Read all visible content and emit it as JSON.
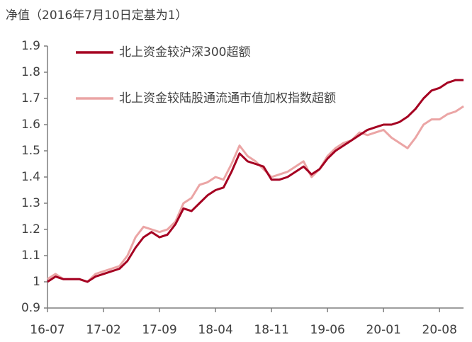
{
  "chart_data": {
    "type": "line",
    "title": "净值（2016年7月10日定基为1）",
    "categories": [
      "16-07",
      null,
      null,
      null,
      null,
      null,
      null,
      "17-02",
      null,
      null,
      null,
      null,
      null,
      null,
      "17-09",
      null,
      null,
      null,
      null,
      null,
      null,
      "18-04",
      null,
      null,
      null,
      null,
      null,
      null,
      "18-11",
      null,
      null,
      null,
      null,
      null,
      null,
      "19-06",
      null,
      null,
      null,
      null,
      null,
      null,
      "20-01",
      null,
      null,
      null,
      null,
      null,
      null,
      "20-08",
      null,
      null,
      null
    ],
    "series": [
      {
        "name": "北上资金较沪深300超额",
        "color": "#a50021",
        "values": [
          1.0,
          1.02,
          1.01,
          1.01,
          1.01,
          1.0,
          1.02,
          1.03,
          1.04,
          1.05,
          1.08,
          1.13,
          1.17,
          1.19,
          1.17,
          1.18,
          1.22,
          1.28,
          1.27,
          1.3,
          1.33,
          1.35,
          1.36,
          1.42,
          1.49,
          1.46,
          1.45,
          1.44,
          1.39,
          1.39,
          1.4,
          1.42,
          1.44,
          1.41,
          1.43,
          1.47,
          1.5,
          1.52,
          1.54,
          1.56,
          1.58,
          1.59,
          1.6,
          1.6,
          1.61,
          1.63,
          1.66,
          1.7,
          1.73,
          1.74,
          1.76,
          1.77,
          1.77
        ]
      },
      {
        "name": "北上资金较陆股通流通市值加权指数超额",
        "color": "#eba5a5",
        "values": [
          1.01,
          1.03,
          1.01,
          1.01,
          1.01,
          1.0,
          1.03,
          1.04,
          1.05,
          1.06,
          1.1,
          1.17,
          1.21,
          1.2,
          1.19,
          1.2,
          1.23,
          1.3,
          1.32,
          1.37,
          1.38,
          1.4,
          1.39,
          1.45,
          1.52,
          1.48,
          1.46,
          1.43,
          1.4,
          1.41,
          1.42,
          1.44,
          1.46,
          1.4,
          1.43,
          1.48,
          1.51,
          1.53,
          1.54,
          1.57,
          1.56,
          1.57,
          1.58,
          1.55,
          1.53,
          1.51,
          1.55,
          1.6,
          1.62,
          1.62,
          1.64,
          1.65,
          1.67
        ]
      }
    ],
    "ylim": [
      0.9,
      1.9
    ],
    "yticks": [
      0.9,
      1,
      1.1,
      1.2,
      1.3,
      1.4,
      1.5,
      1.6,
      1.7,
      1.8,
      1.9
    ],
    "legend": "upper left"
  }
}
